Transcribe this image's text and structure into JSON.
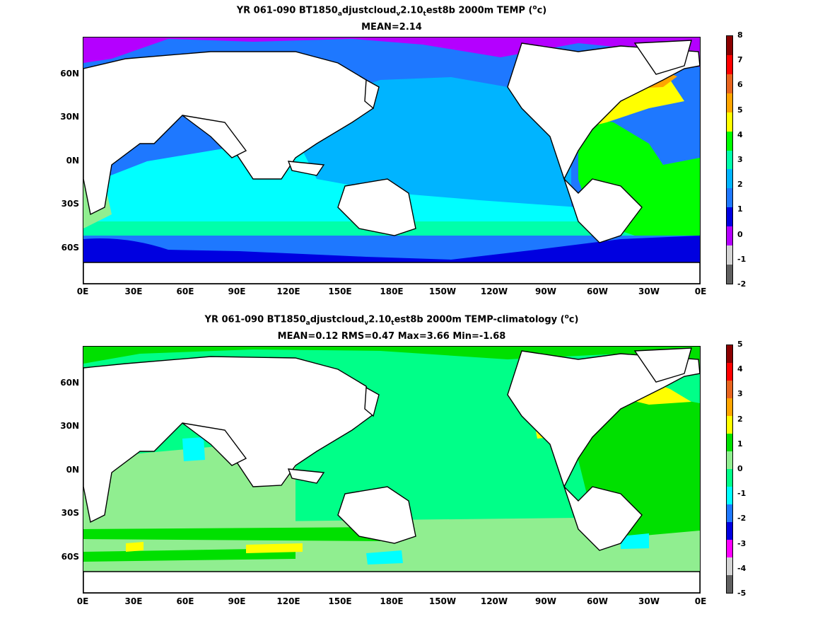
{
  "panel1": {
    "title_pre": "YR 061-090 BT1850",
    "sub1": "a",
    "title_mid1": "djustcloud",
    "sub2": "v",
    "title_mid2": "2.10",
    "sub3": "t",
    "title_mid3": "est8b 2000m TEMP (",
    "sup": "o",
    "title_end": "c)",
    "stats": "MEAN=2.14",
    "colorbar_labels": [
      "8",
      "7",
      "6",
      "5",
      "4",
      "3",
      "2",
      "1",
      "0",
      "-1",
      "-2"
    ],
    "colorbar_colors": [
      "#8b0000",
      "#ff0000",
      "#e8641e",
      "#ffa500",
      "#ffff00",
      "#00ff00",
      "#00ffaa",
      "#00b4ff",
      "#1e78ff",
      "#0000e0",
      "#b400ff",
      "#d3d3d3",
      "#606060"
    ]
  },
  "panel2": {
    "title_pre": "YR 061-090 BT1850",
    "sub1": "a",
    "title_mid1": "djustcloud",
    "sub2": "v",
    "title_mid2": "2.10",
    "sub3": "t",
    "title_mid3": "est8b 2000m TEMP-climatology (",
    "sup": "o",
    "title_end": "c)",
    "stats": "MEAN=0.12   RMS=0.47   Max=3.66   Min=-1.68",
    "colorbar_labels": [
      "5",
      "4",
      "3",
      "2",
      "1",
      "0",
      "-1",
      "-2",
      "-3",
      "-4",
      "-5"
    ],
    "colorbar_colors": [
      "#8b0000",
      "#ff0000",
      "#e8641e",
      "#ffa500",
      "#ffff00",
      "#00e000",
      "#90ee90",
      "#00ff88",
      "#00ffff",
      "#1e78ff",
      "#0000e0",
      "#ff00ff",
      "#d3d3d3",
      "#606060"
    ]
  },
  "axes": {
    "lat_labels": [
      "60N",
      "30N",
      "0N",
      "30S",
      "60S"
    ],
    "lon_labels": [
      "0E",
      "30E",
      "60E",
      "90E",
      "120E",
      "150E",
      "180E",
      "150W",
      "120W",
      "90W",
      "60W",
      "30W",
      "0E"
    ]
  },
  "map_colors": {
    "land": "#ffffff",
    "coast": "#000000"
  }
}
